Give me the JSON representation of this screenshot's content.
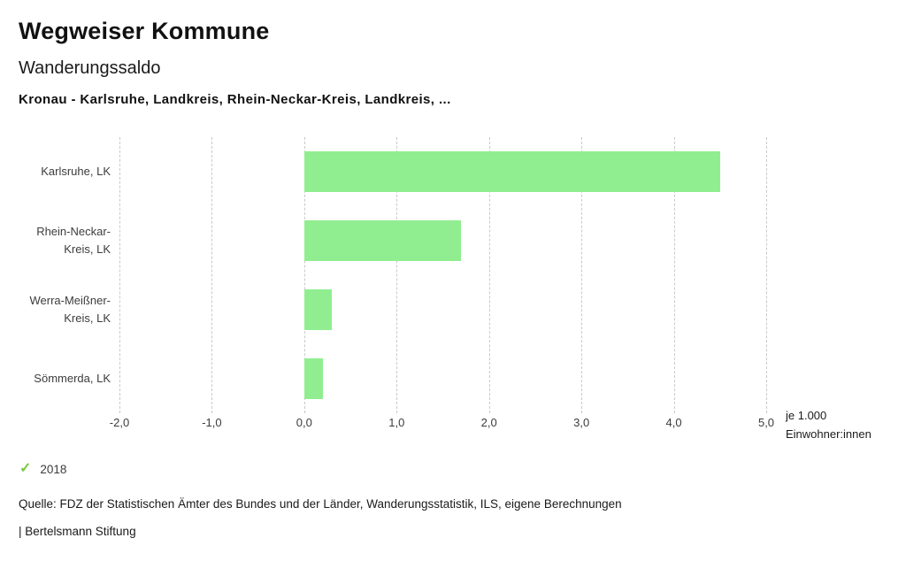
{
  "header": {
    "title": "Wegweiser Kommune",
    "subtitle": "Wanderungssaldo",
    "selection": "Kronau - Karlsruhe, Landkreis, Rhein-Neckar-Kreis, Landkreis, ..."
  },
  "chart_data": {
    "type": "bar",
    "orientation": "horizontal",
    "title": "Wanderungssaldo",
    "categories": [
      "Karlsruhe, LK",
      "Rhein-Neckar-Kreis, LK",
      "Werra-Meißner-Kreis, LK",
      "Sömmerda, LK"
    ],
    "category_label_lines": [
      [
        "Karlsruhe, LK"
      ],
      [
        "Rhein-Neckar-",
        "Kreis, LK"
      ],
      [
        "Werra-Meißner-",
        "Kreis, LK"
      ],
      [
        "Sömmerda, LK"
      ]
    ],
    "series": [
      {
        "name": "2018",
        "values": [
          4.5,
          1.7,
          0.3,
          0.2
        ]
      }
    ],
    "xlim": [
      -2.0,
      5.0
    ],
    "xtick_values": [
      -2,
      -1,
      0,
      1,
      2,
      3,
      4,
      5
    ],
    "xtick_labels": [
      "-2,0",
      "-1,0",
      "0,0",
      "1,0",
      "2,0",
      "3,0",
      "4,0",
      "5,0"
    ],
    "xlabel": "je 1.000 Einwohner:innen",
    "bar_color": "#90EE90",
    "grid": "vertical-dashed",
    "legend_position": "bottom-left"
  },
  "axis_unit": {
    "line1": "je 1.000",
    "line2": "Einwohner:innen"
  },
  "legend": {
    "year": "2018",
    "check_color": "#7AC943"
  },
  "footer": {
    "source": "Quelle: FDZ der Statistischen Ämter des Bundes und der Länder, Wanderungsstatistik, ILS, eigene Berechnungen",
    "branding": "| Bertelsmann Stiftung"
  }
}
